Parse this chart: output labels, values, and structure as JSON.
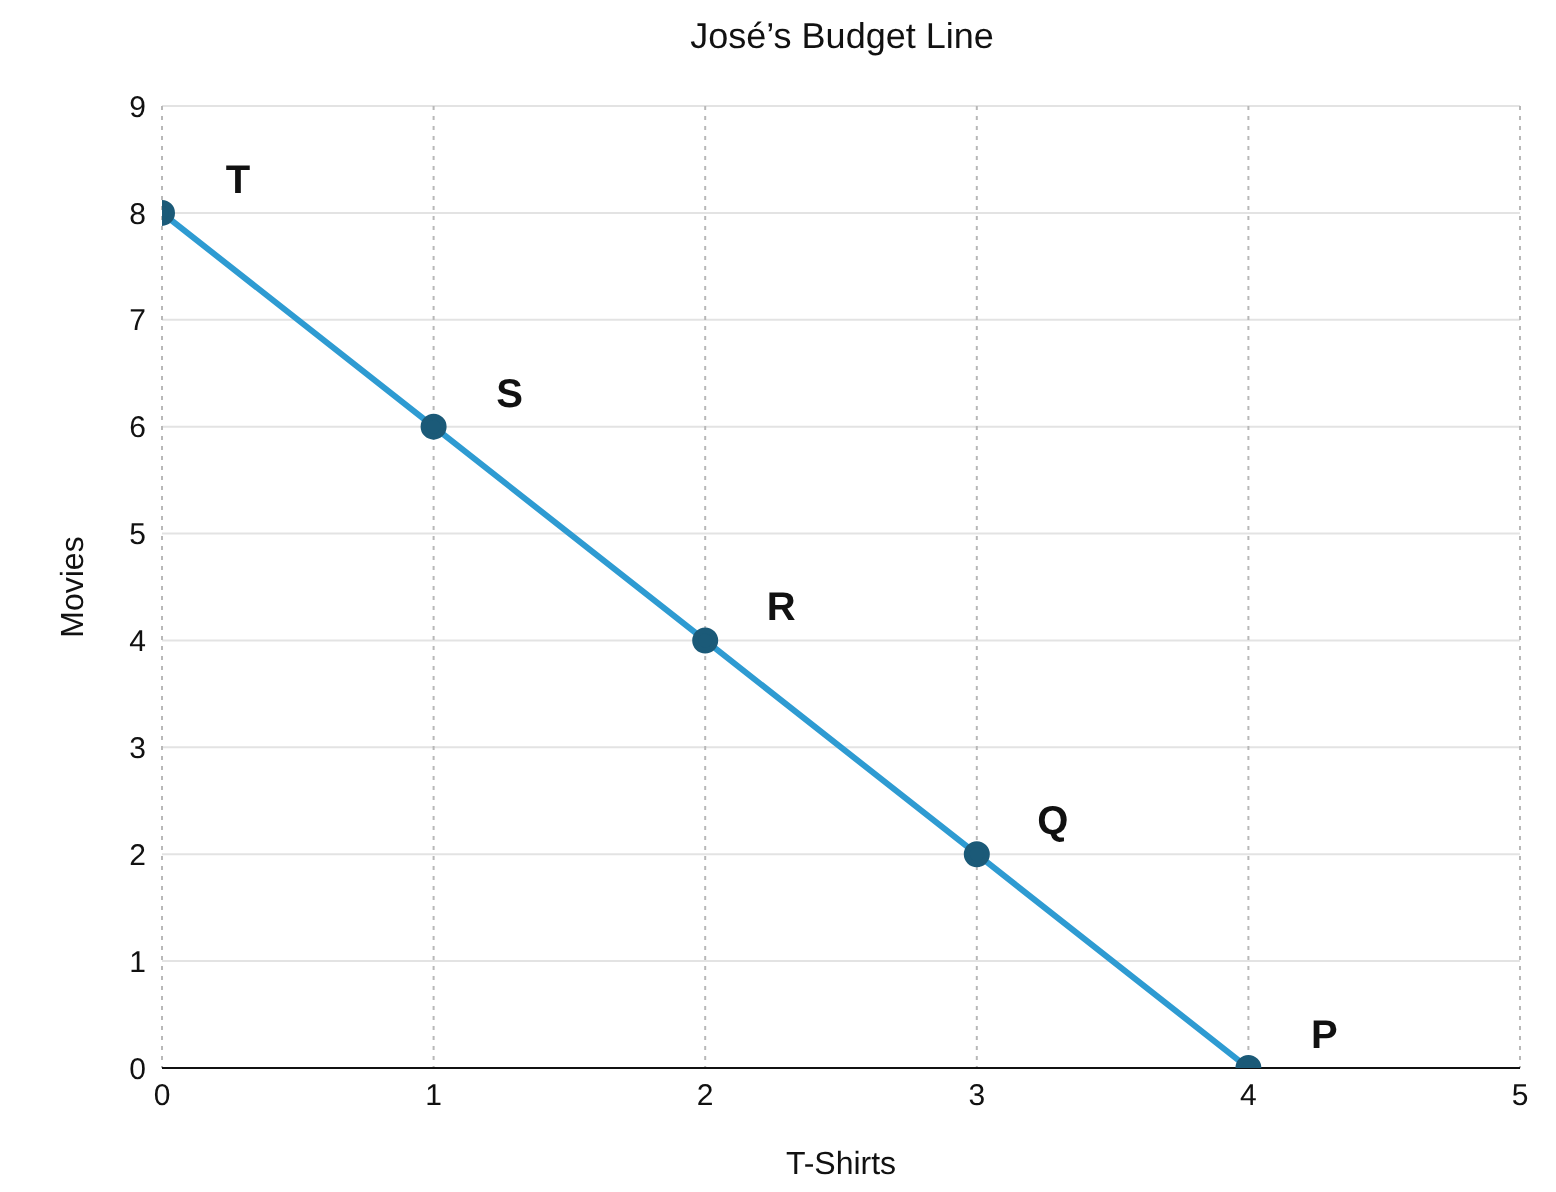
{
  "chart_data": {
    "type": "line",
    "title": "José’s Budget Line",
    "xlabel": "T-Shirts",
    "ylabel": "Movies",
    "x": [
      0,
      1,
      2,
      3,
      4
    ],
    "series": [
      {
        "color": "#2e9bd2",
        "values": [
          8,
          6,
          4,
          2,
          0
        ]
      }
    ],
    "xlim": [
      0,
      5
    ],
    "xticks": [
      0,
      1,
      2,
      3,
      4,
      5
    ],
    "ylim": [
      0,
      9
    ],
    "yticks": [
      0,
      1,
      2,
      3,
      4,
      5,
      6,
      7,
      8,
      9
    ],
    "grid": true,
    "marker": "circle",
    "line_style": "solid",
    "legend": false,
    "annotations": [
      {
        "text": "T",
        "x": 0,
        "y": 8
      },
      {
        "text": "S",
        "x": 1,
        "y": 6
      },
      {
        "text": "R",
        "x": 2,
        "y": 4
      },
      {
        "text": "Q",
        "x": 3,
        "y": 2
      },
      {
        "text": "P",
        "x": 4,
        "y": 0
      }
    ]
  }
}
